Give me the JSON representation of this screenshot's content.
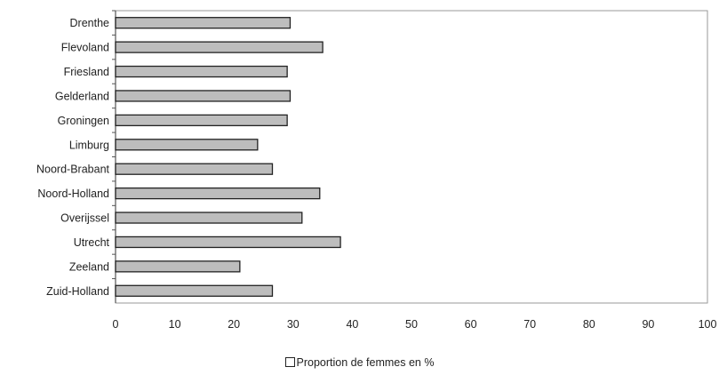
{
  "chart_data": {
    "type": "bar",
    "orientation": "horizontal",
    "categories": [
      "Drenthe",
      "Flevoland",
      "Friesland",
      "Gelderland",
      "Groningen",
      "Limburg",
      "Noord-Brabant",
      "Noord-Holland",
      "Overijssel",
      "Utrecht",
      "Zeeland",
      "Zuid-Holland"
    ],
    "series": [
      {
        "name": "Proportion de femmes en %",
        "values": [
          29.5,
          35,
          29,
          29.5,
          29,
          24,
          26.5,
          34.5,
          31.5,
          38,
          21,
          26.5
        ]
      }
    ],
    "xlim": [
      0,
      100
    ],
    "xticks": [
      0,
      10,
      20,
      30,
      40,
      50,
      60,
      70,
      80,
      90,
      100
    ],
    "grid": false,
    "legend_position": "bottom",
    "colors": {
      "bar_fill": "#bdbdbd",
      "bar_stroke": "#222222",
      "axis": "#555555"
    }
  }
}
